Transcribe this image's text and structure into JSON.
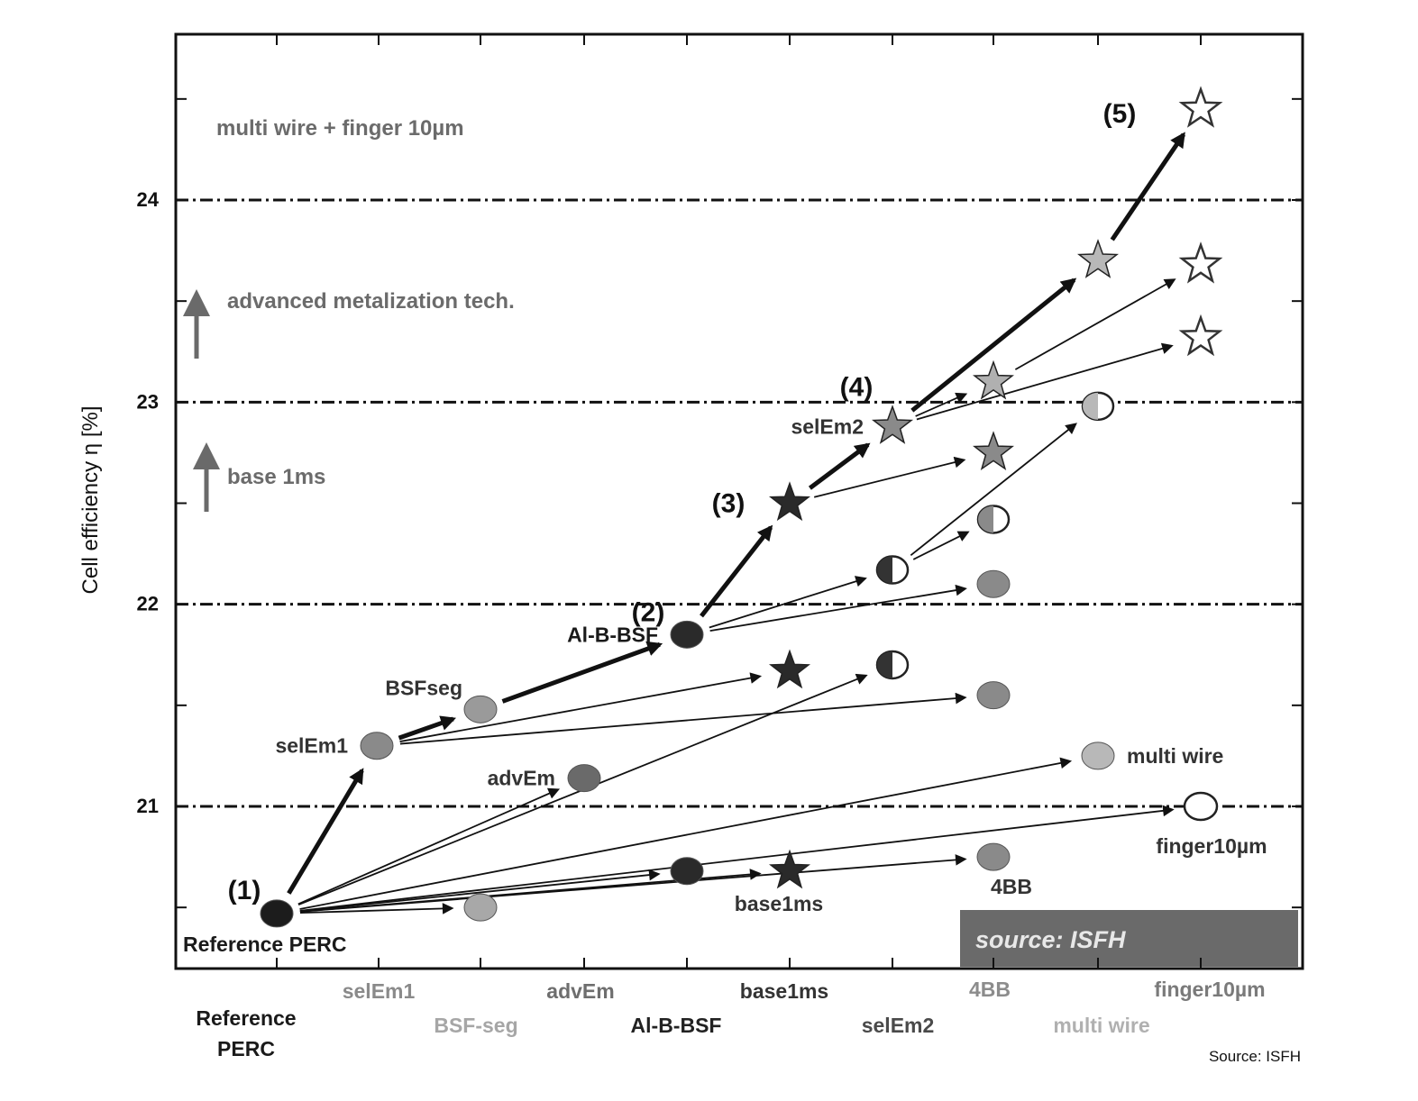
{
  "chart_data": {
    "type": "scatter",
    "title": "",
    "xlabel": "",
    "ylabel": "Cell efficiency η [%]",
    "ylim": [
      20.3,
      24.8
    ],
    "y_ticks": [
      "21",
      "22",
      "23",
      "24"
    ],
    "x_categories": [
      {
        "label": "Reference\nPERC",
        "color": "#1a1a1a"
      },
      {
        "label": "selEm1",
        "color": "#8a8a8a"
      },
      {
        "label": "BSF-seg",
        "color": "#a6a6a6"
      },
      {
        "label": "advEm",
        "color": "#6e6e6e"
      },
      {
        "label": "Al-B-BSF",
        "color": "#222222"
      },
      {
        "label": "base1ms",
        "color": "#333333"
      },
      {
        "label": "selEm2",
        "color": "#4a4a4a"
      },
      {
        "label": "4BB",
        "color": "#8c8c8c"
      },
      {
        "label": "multi wire",
        "color": "#b0b0b0"
      },
      {
        "label": "finger10µm",
        "color": "#7a7a7a"
      }
    ],
    "points": [
      {
        "id": "p1",
        "x": 0,
        "y": 20.47,
        "marker": "circle",
        "fill": "#1c1c1c"
      },
      {
        "id": "p2",
        "x": 1,
        "y": 21.3,
        "marker": "circle",
        "fill": "#8a8a8a"
      },
      {
        "id": "p3",
        "x": 2,
        "y": 20.5,
        "marker": "circle",
        "fill": "#a8a8a8"
      },
      {
        "id": "p4",
        "x": 2,
        "y": 21.48,
        "marker": "circle",
        "fill": "#9a9a9a"
      },
      {
        "id": "p5",
        "x": 3,
        "y": 21.14,
        "marker": "circle",
        "fill": "#6a6a6a"
      },
      {
        "id": "p6",
        "x": 4,
        "y": 20.68,
        "marker": "circle",
        "fill": "#2a2a2a"
      },
      {
        "id": "p7",
        "x": 4,
        "y": 21.85,
        "marker": "circle",
        "fill": "#2a2a2a"
      },
      {
        "id": "p8",
        "x": 5,
        "y": 20.68,
        "marker": "star",
        "fill": "#2a2a2a"
      },
      {
        "id": "p9",
        "x": 5,
        "y": 21.67,
        "marker": "star",
        "fill": "#2a2a2a"
      },
      {
        "id": "p10",
        "x": 5,
        "y": 22.5,
        "marker": "star",
        "fill": "#2a2a2a"
      },
      {
        "id": "p11",
        "x": 6,
        "y": 21.7,
        "marker": "halfcircle",
        "fill": "#333333"
      },
      {
        "id": "p12",
        "x": 6,
        "y": 22.17,
        "marker": "halfcircle",
        "fill": "#333333"
      },
      {
        "id": "p13",
        "x": 6,
        "y": 22.88,
        "marker": "star",
        "fill": "#8a8a8a"
      },
      {
        "id": "p14",
        "x": 7,
        "y": 20.75,
        "marker": "circle",
        "fill": "#8a8a8a"
      },
      {
        "id": "p15",
        "x": 7,
        "y": 21.55,
        "marker": "circle",
        "fill": "#8a8a8a"
      },
      {
        "id": "p16",
        "x": 7,
        "y": 22.1,
        "marker": "circle",
        "fill": "#8a8a8a"
      },
      {
        "id": "p17",
        "x": 7,
        "y": 22.42,
        "marker": "halfcircle",
        "fill": "#8a8a8a"
      },
      {
        "id": "p18",
        "x": 7,
        "y": 22.75,
        "marker": "star",
        "fill": "#8a8a8a"
      },
      {
        "id": "p19",
        "x": 7,
        "y": 23.1,
        "marker": "star",
        "fill": "#b0b0b0"
      },
      {
        "id": "p20",
        "x": 8,
        "y": 21.25,
        "marker": "circle",
        "fill": "#b8b8b8"
      },
      {
        "id": "p21",
        "x": 8,
        "y": 22.98,
        "marker": "halfcircle",
        "fill": "#b8b8b8"
      },
      {
        "id": "p22",
        "x": 8,
        "y": 23.7,
        "marker": "star",
        "fill": "#b8b8b8"
      },
      {
        "id": "p23",
        "x": 9,
        "y": 21.0,
        "marker": "circle",
        "fill": "none"
      },
      {
        "id": "p24",
        "x": 9,
        "y": 23.32,
        "marker": "star",
        "fill": "none"
      },
      {
        "id": "p25",
        "x": 9,
        "y": 23.68,
        "marker": "star",
        "fill": "none"
      },
      {
        "id": "p26",
        "x": 9,
        "y": 24.45,
        "marker": "star",
        "fill": "none"
      }
    ],
    "arrows": [
      {
        "from": "p1",
        "to": "p2",
        "bold": true
      },
      {
        "from": "p2",
        "to": "p4",
        "bold": true
      },
      {
        "from": "p4",
        "to": "p7",
        "bold": true
      },
      {
        "from": "p7",
        "to": "p10",
        "bold": true
      },
      {
        "from": "p10",
        "to": "p13",
        "bold": true
      },
      {
        "from": "p13",
        "to": "p22",
        "bold": true
      },
      {
        "from": "p22",
        "to": "p26",
        "bold": true
      },
      {
        "from": "p1",
        "to": "p3",
        "bold": false
      },
      {
        "from": "p1",
        "to": "p5",
        "bold": false
      },
      {
        "from": "p1",
        "to": "p6",
        "bold": false
      },
      {
        "from": "p1",
        "to": "p8",
        "bold": false
      },
      {
        "from": "p1",
        "to": "p11",
        "bold": false
      },
      {
        "from": "p1",
        "to": "p14",
        "bold": false
      },
      {
        "from": "p1",
        "to": "p20",
        "bold": false
      },
      {
        "from": "p1",
        "to": "p23",
        "bold": false
      },
      {
        "from": "p2",
        "to": "p9",
        "bold": false
      },
      {
        "from": "p2",
        "to": "p15",
        "bold": false
      },
      {
        "from": "p7",
        "to": "p12",
        "bold": false
      },
      {
        "from": "p7",
        "to": "p16",
        "bold": false
      },
      {
        "from": "p10",
        "to": "p18",
        "bold": false
      },
      {
        "from": "p12",
        "to": "p17",
        "bold": false
      },
      {
        "from": "p12",
        "to": "p21",
        "bold": false
      },
      {
        "from": "p13",
        "to": "p19",
        "bold": false
      },
      {
        "from": "p13",
        "to": "p24",
        "bold": false
      },
      {
        "from": "p19",
        "to": "p25",
        "bold": false
      }
    ],
    "point_labels": [
      {
        "point": "p1",
        "text": "Reference PERC",
        "pos": "below",
        "color": "#1a1a1a"
      },
      {
        "point": "p2",
        "text": "selEm1",
        "pos": "left",
        "color": "#333333"
      },
      {
        "point": "p4",
        "text": "BSFseg",
        "pos": "above-left",
        "color": "#333333"
      },
      {
        "point": "p5",
        "text": "advEm",
        "pos": "left",
        "color": "#333333"
      },
      {
        "point": "p7",
        "text": "Al-B-BSF",
        "pos": "left",
        "color": "#1a1a1a"
      },
      {
        "point": "p13",
        "text": "selEm2",
        "pos": "left",
        "color": "#333333"
      },
      {
        "point": "p8",
        "text": "base1ms",
        "pos": "below",
        "color": "#333333"
      },
      {
        "point": "p14",
        "text": "4BB",
        "pos": "below",
        "color": "#333333"
      },
      {
        "point": "p20",
        "text": "multi wire",
        "pos": "right",
        "color": "#333333"
      },
      {
        "point": "p23",
        "text": "finger10µm",
        "pos": "below",
        "color": "#333333"
      }
    ],
    "stage_labels": [
      {
        "point": "p1",
        "text": "(1)"
      },
      {
        "point": "p7",
        "text": "(2)"
      },
      {
        "point": "p10",
        "text": "(3)"
      },
      {
        "point": "p13",
        "text": "(4)"
      },
      {
        "point": "p26",
        "text": "(5)"
      }
    ],
    "legend": [
      {
        "text": "multi wire + finger 10µm",
        "arrow": false
      },
      {
        "text": "advanced metalization tech.",
        "arrow": true
      },
      {
        "text": "base 1ms",
        "arrow": true
      }
    ],
    "source_box": "source: ISFH",
    "source_footer": "Source: ISFH"
  }
}
